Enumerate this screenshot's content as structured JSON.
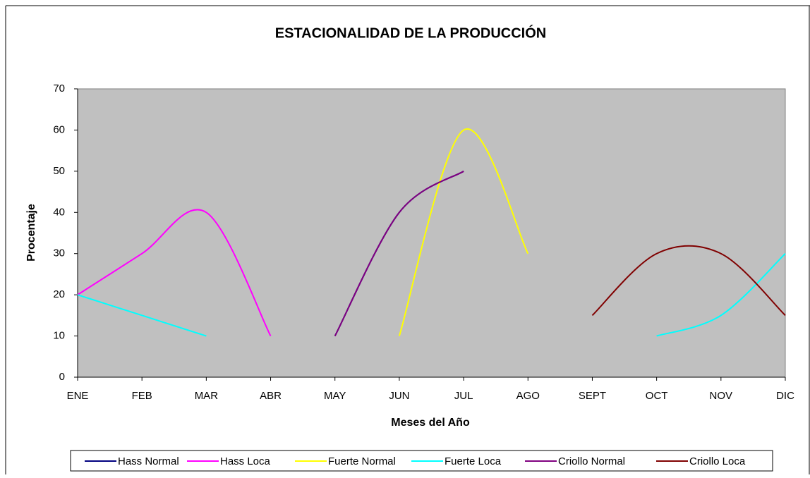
{
  "chart_data": {
    "type": "line",
    "title": "ESTACIONALIDAD DE LA PRODUCCIÓN",
    "x_label": "Meses del Año",
    "y_label": "Procentaje",
    "categories": [
      "ENE",
      "FEB",
      "MAR",
      "ABR",
      "MAY",
      "JUN",
      "JUL",
      "AGO",
      "SEPT",
      "OCT",
      "NOV",
      "DIC"
    ],
    "ylim": [
      0,
      70
    ],
    "yticks": [
      0,
      10,
      20,
      30,
      40,
      50,
      60,
      70
    ],
    "smooth": true,
    "legend": "bottom",
    "series": [
      {
        "name": "Hass Normal",
        "color": "#000080",
        "values": [
          null,
          null,
          null,
          null,
          10,
          40,
          50,
          null,
          null,
          null,
          null,
          null
        ]
      },
      {
        "name": "Hass Loca",
        "color": "#ff00ff",
        "values": [
          20,
          30,
          40,
          10,
          null,
          null,
          null,
          null,
          null,
          null,
          null,
          null
        ]
      },
      {
        "name": "Fuerte Normal",
        "color": "#ffff00",
        "values": [
          null,
          null,
          null,
          null,
          null,
          10,
          60,
          30,
          null,
          null,
          null,
          null
        ]
      },
      {
        "name": "Fuerte Loca",
        "color": "#00ffff",
        "values": [
          20,
          15,
          10,
          null,
          null,
          null,
          null,
          null,
          null,
          10,
          15,
          30
        ]
      },
      {
        "name": "Criollo Normal",
        "color": "#800080",
        "values": [
          null,
          null,
          null,
          null,
          10,
          40,
          50,
          null,
          null,
          null,
          null,
          null
        ]
      },
      {
        "name": "Criollo Loca",
        "color": "#800000",
        "values": [
          null,
          null,
          null,
          null,
          null,
          null,
          null,
          null,
          15,
          30,
          30,
          15
        ]
      }
    ]
  }
}
